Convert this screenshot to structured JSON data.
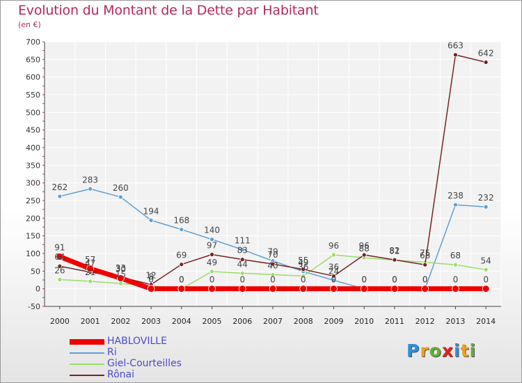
{
  "title": "Evolution du Montant de la Dette par Habitant",
  "subtitle": "(en €)",
  "logo": {
    "text": "Proxiti",
    "letters": [
      {
        "ch": "P",
        "color": "#2b8fd8"
      },
      {
        "ch": "r",
        "color": "#f0a020"
      },
      {
        "ch": "o",
        "color": "#60b030"
      },
      {
        "ch": "x",
        "color": "#e02020"
      },
      {
        "ch": "i",
        "color": "#2b8fd8"
      },
      {
        "ch": "t",
        "color": "#f0a020"
      },
      {
        "ch": "i",
        "color": "#60b030"
      }
    ]
  },
  "chart_data": {
    "type": "line",
    "x": [
      "2000",
      "2001",
      "2002",
      "2003",
      "2004",
      "2005",
      "2006",
      "2007",
      "2008",
      "2009",
      "2010",
      "2011",
      "2012",
      "2013",
      "2014"
    ],
    "ylim": [
      -50,
      700
    ],
    "yticks": [
      -50,
      0,
      50,
      100,
      150,
      200,
      250,
      300,
      350,
      400,
      450,
      500,
      550,
      600,
      650,
      700
    ],
    "grid": true,
    "legend_position": "bottom-left",
    "series": [
      {
        "name": "HABLOVILLE",
        "color": "#ee0000",
        "values": [
          91,
          57,
          30,
          0,
          0,
          0,
          0,
          0,
          0,
          0,
          0,
          0,
          0,
          0,
          0
        ],
        "labels": [
          "91",
          "57",
          "30",
          "0",
          "0",
          "0",
          "0",
          "0",
          "0",
          "0",
          "0",
          "0",
          "0",
          "0",
          "0"
        ]
      },
      {
        "name": "Ri",
        "color": "#5f9fd3",
        "values": [
          262,
          283,
          260,
          194,
          168,
          140,
          111,
          79,
          49,
          24,
          0,
          0,
          0,
          238,
          232
        ],
        "labels": [
          "262",
          "283",
          "260",
          "194",
          "168",
          "140",
          "111",
          "79",
          "49",
          "24",
          "0",
          "0",
          "0",
          "238",
          "232"
        ]
      },
      {
        "name": "Giel-Courteilles",
        "color": "#99dd66",
        "values": [
          26,
          21,
          15,
          8,
          0,
          49,
          44,
          40,
          36,
          96,
          88,
          81,
          75,
          68,
          54
        ],
        "labels": [
          "26",
          "21",
          "15",
          "8",
          "0",
          "49",
          "44",
          "40",
          "36",
          "96",
          "88",
          "81",
          "75",
          "68",
          "54"
        ]
      },
      {
        "name": "Rônai",
        "color": "#772222",
        "values": [
          64,
          47,
          33,
          12,
          69,
          97,
          83,
          70,
          55,
          36,
          96,
          82,
          68,
          663,
          642
        ],
        "labels": [
          "64",
          "47",
          "33",
          "12",
          "69",
          "97",
          "83",
          "70",
          "55",
          "36",
          "96",
          "82",
          "68",
          "663",
          "642"
        ]
      }
    ]
  }
}
